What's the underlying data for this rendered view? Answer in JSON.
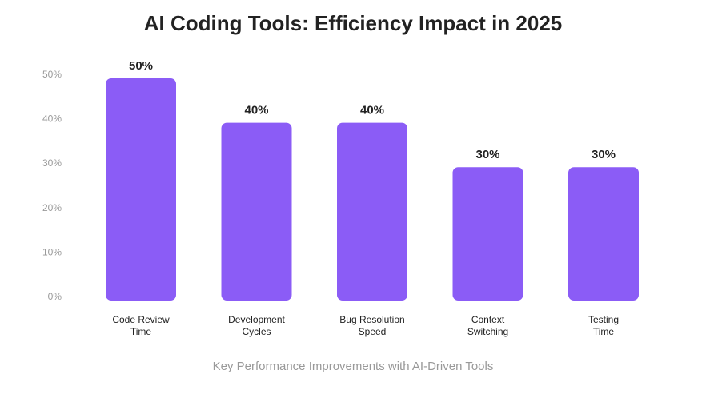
{
  "chart_data": {
    "type": "bar",
    "title": "AI Coding Tools: Efficiency Impact in 2025",
    "subtitle": "Key Performance Improvements with AI-Driven Tools",
    "categories": [
      [
        "Code Review",
        "Time"
      ],
      [
        "Development",
        "Cycles"
      ],
      [
        "Bug Resolution",
        "Speed"
      ],
      [
        "Context",
        "Switching"
      ],
      [
        "Testing",
        "Time"
      ]
    ],
    "values": [
      50,
      40,
      40,
      30,
      30
    ],
    "value_labels": [
      "50%",
      "40%",
      "40%",
      "30%",
      "30%"
    ],
    "yticks": [
      0,
      10,
      20,
      30,
      40,
      50
    ],
    "ytick_labels": [
      "0%",
      "10%",
      "20%",
      "30%",
      "40%",
      "50%"
    ],
    "ylim": [
      0,
      50
    ],
    "xlabel": "",
    "ylabel": "",
    "grid": false,
    "legend": false,
    "bar_color": "#8b5cf6"
  }
}
